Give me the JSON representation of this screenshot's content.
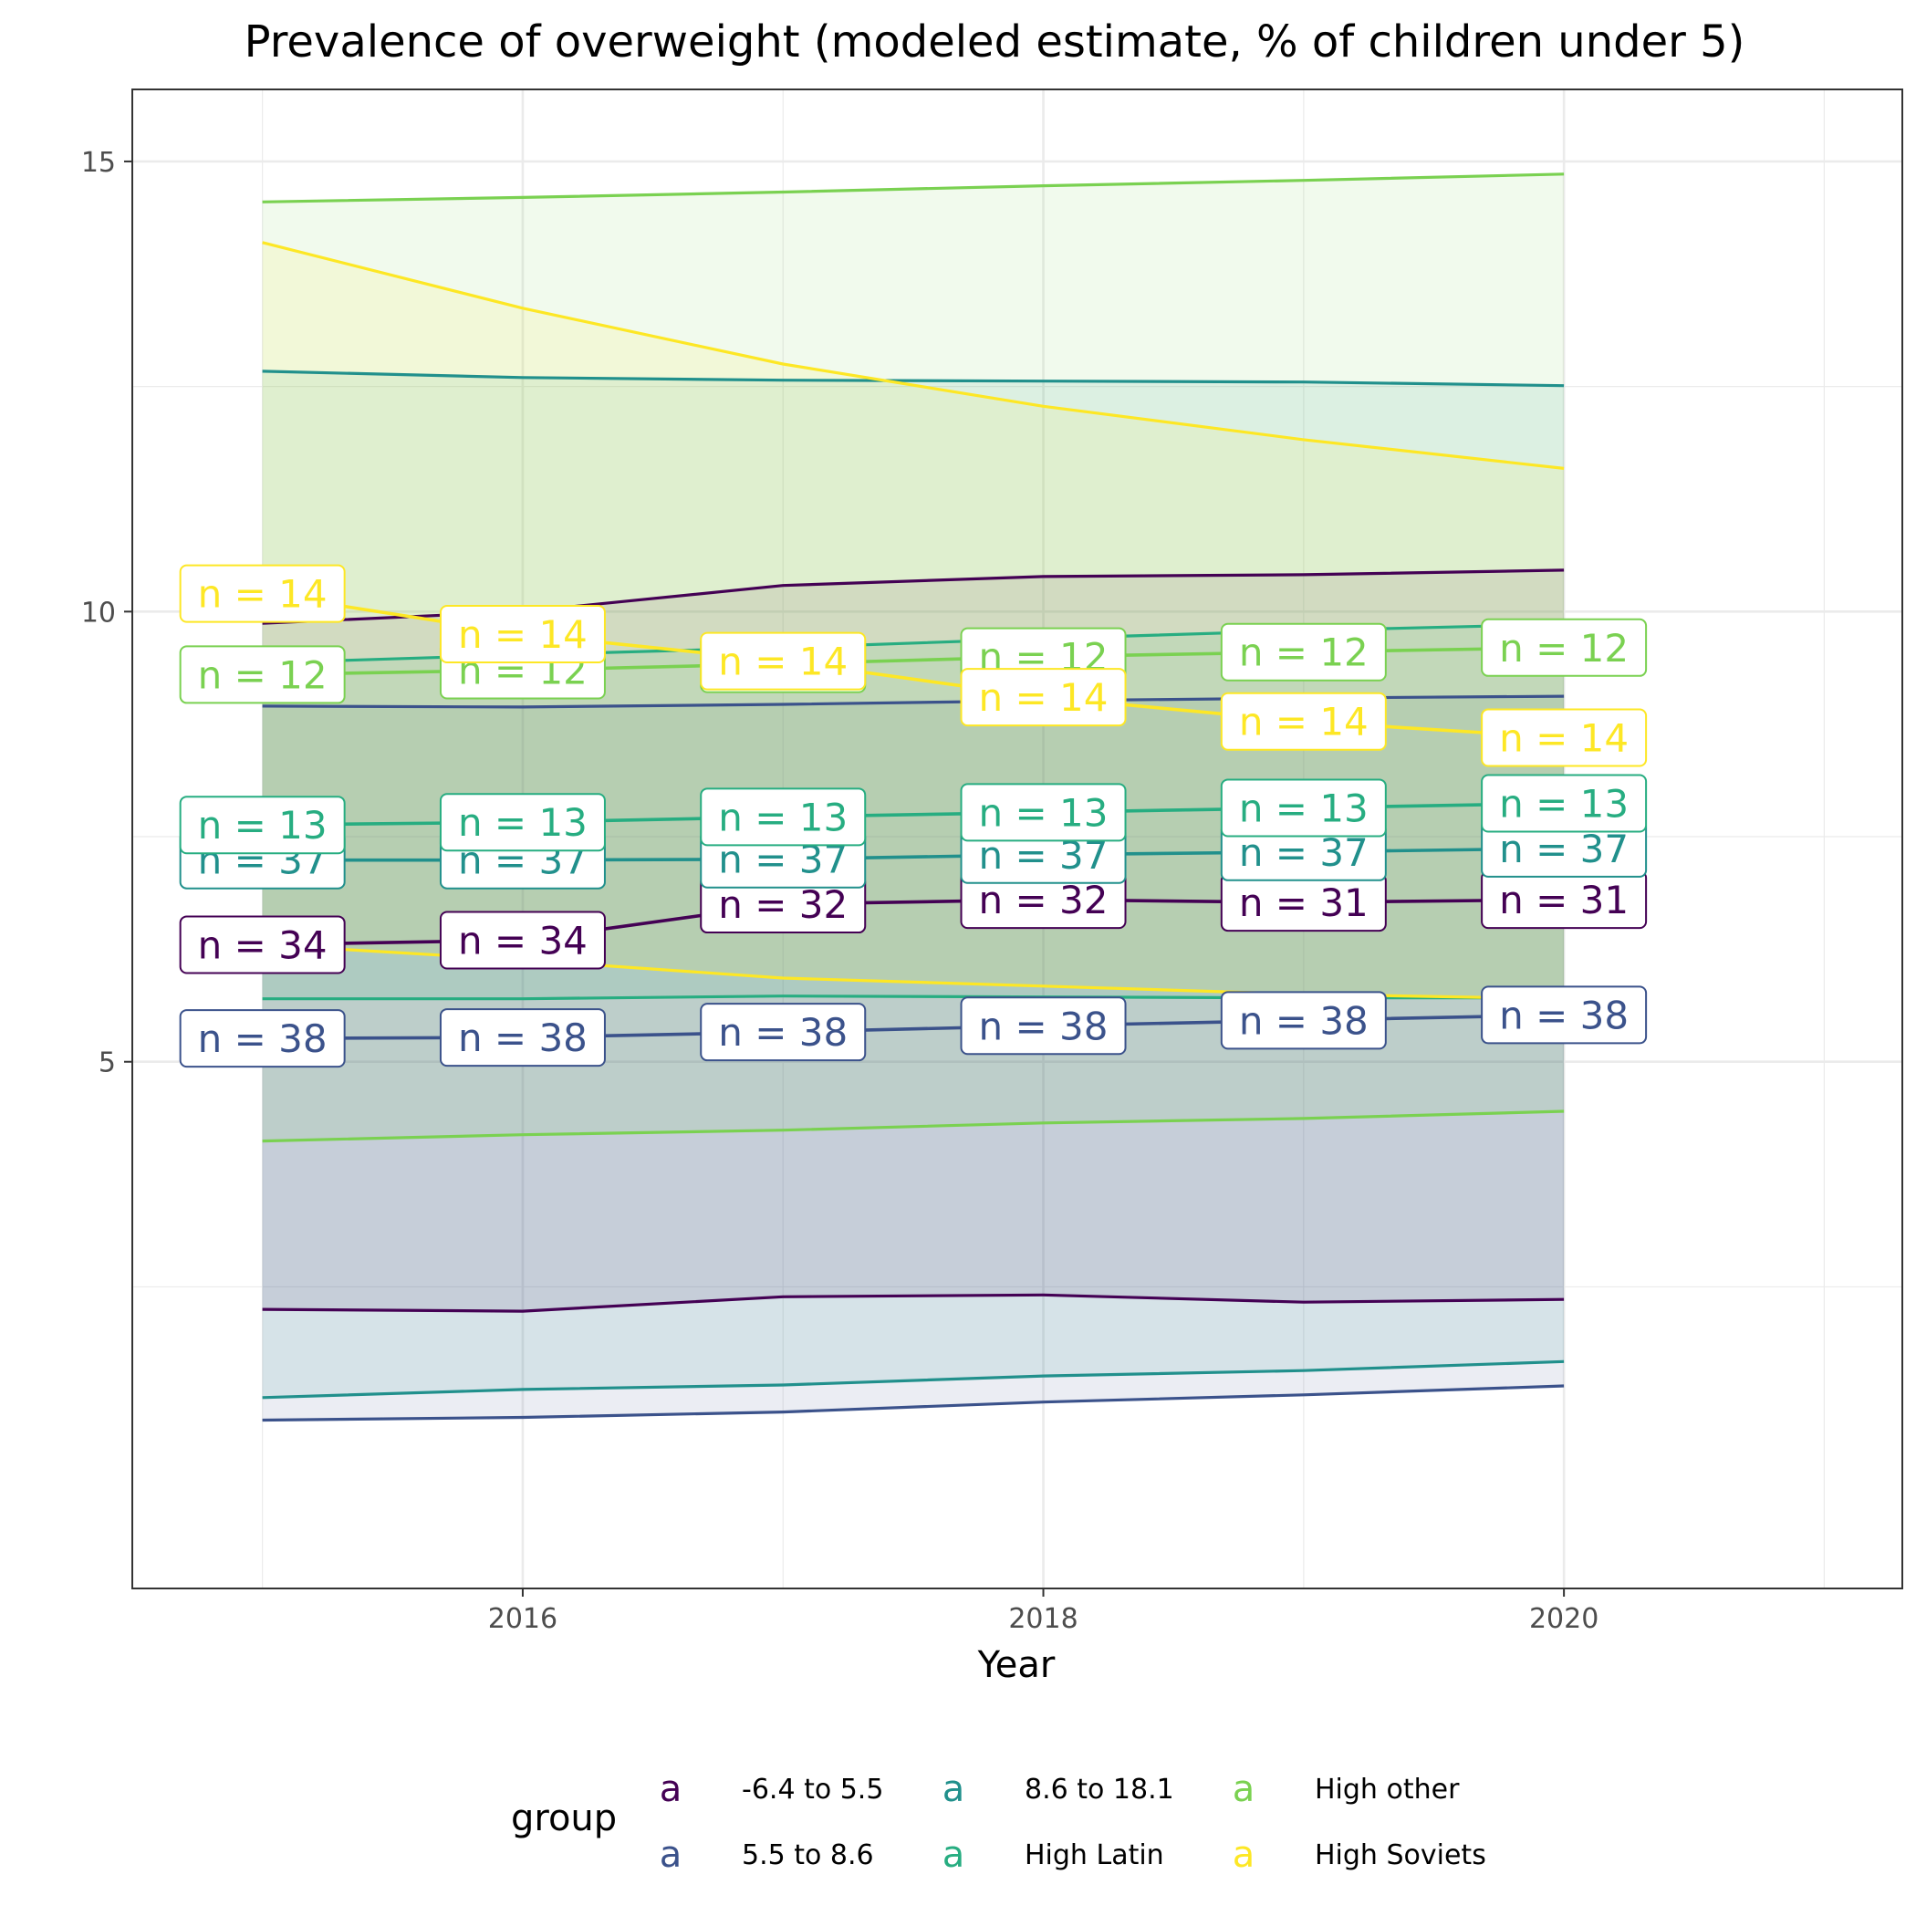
{
  "chart_data": {
    "type": "line",
    "title": "Prevalence of overweight (modeled estimate, % of children under 5)",
    "xlabel": "Year",
    "ylabel": "",
    "xlim": [
      2014.5,
      2021.3
    ],
    "ylim": [
      -0.85,
      15.8
    ],
    "x_ticks": [
      2016,
      2018,
      2020
    ],
    "y_ticks": [
      5,
      10,
      15
    ],
    "grid": true,
    "legend": {
      "title": "group",
      "position": "bottom",
      "key_symbol": "a"
    },
    "x": [
      2015,
      2016,
      2017,
      2018,
      2019,
      2020
    ],
    "series": [
      {
        "name": "-6.4 to 5.5",
        "color": "#440154",
        "lower": [
          2.25,
          2.23,
          2.39,
          2.41,
          2.33,
          2.36
        ],
        "mean": [
          6.3,
          6.35,
          6.75,
          6.8,
          6.77,
          6.8
        ],
        "upper": [
          9.87,
          10.0,
          10.29,
          10.39,
          10.41,
          10.46
        ],
        "n_labels": [
          "n = 34",
          "n = 34",
          "n = 32",
          "n = 32",
          "n = 31",
          "n = 31"
        ]
      },
      {
        "name": "5.5 to 8.6",
        "color": "#3b528b",
        "lower": [
          1.02,
          1.05,
          1.11,
          1.22,
          1.3,
          1.4
        ],
        "mean": [
          5.26,
          5.27,
          5.33,
          5.4,
          5.46,
          5.52
        ],
        "upper": [
          8.95,
          8.94,
          8.97,
          9.01,
          9.04,
          9.06
        ],
        "n_labels": [
          "n = 38",
          "n = 38",
          "n = 38",
          "n = 38",
          "n = 38",
          "n = 38"
        ]
      },
      {
        "name": "8.6 to 18.1",
        "color": "#21908c",
        "lower": [
          1.27,
          1.36,
          1.41,
          1.51,
          1.57,
          1.67
        ],
        "mean": [
          7.24,
          7.24,
          7.25,
          7.3,
          7.33,
          7.37
        ],
        "upper": [
          12.67,
          12.6,
          12.57,
          12.56,
          12.55,
          12.51
        ],
        "n_labels": [
          "n = 37",
          "n = 37",
          "n = 37",
          "n = 37",
          "n = 37",
          "n = 37"
        ]
      },
      {
        "name": "High Latin",
        "color": "#27ad81",
        "lower": [
          5.7,
          5.7,
          5.73,
          5.72,
          5.71,
          5.71
        ],
        "mean": [
          7.63,
          7.66,
          7.72,
          7.77,
          7.82,
          7.87
        ],
        "upper": [
          9.43,
          9.52,
          9.6,
          9.7,
          9.79,
          9.86
        ],
        "n_labels": [
          "n = 13",
          "n = 13",
          "n = 13",
          "n = 13",
          "n = 13",
          "n = 13"
        ]
      },
      {
        "name": "High other",
        "color": "#7ad151",
        "lower": [
          4.12,
          4.19,
          4.24,
          4.32,
          4.37,
          4.45
        ],
        "mean": [
          9.3,
          9.35,
          9.42,
          9.5,
          9.55,
          9.6
        ],
        "upper": [
          14.55,
          14.6,
          14.66,
          14.73,
          14.79,
          14.86
        ],
        "n_labels": [
          "n = 12",
          "n = 12",
          "n = 12",
          "n = 12",
          "n = 12",
          "n = 12"
        ]
      },
      {
        "name": "High Soviets",
        "color": "#fde725",
        "lower": [
          6.3,
          6.13,
          5.93,
          5.84,
          5.75,
          5.7
        ],
        "mean": [
          10.2,
          9.75,
          9.45,
          9.05,
          8.78,
          8.6
        ],
        "upper": [
          14.1,
          13.37,
          12.75,
          12.28,
          11.91,
          11.59
        ],
        "n_labels": [
          "n = 14",
          "n = 14",
          "n = 14",
          "n = 14",
          "n = 14",
          "n = 14"
        ]
      }
    ]
  }
}
